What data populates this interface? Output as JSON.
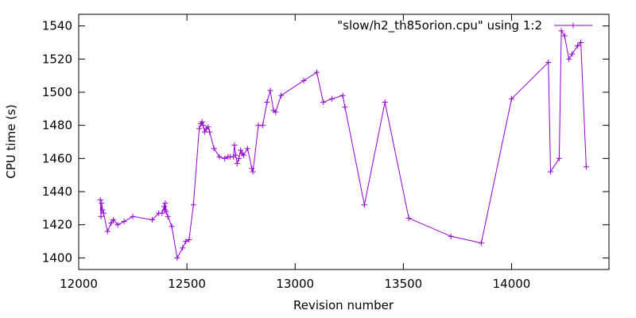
{
  "chart_data": {
    "type": "line",
    "xlabel": "Revision number",
    "ylabel": "CPU time (s)",
    "xlim": [
      12000,
      14450
    ],
    "ylim": [
      1393,
      1547
    ],
    "xticks": [
      12000,
      12500,
      13000,
      13500,
      14000
    ],
    "yticks": [
      1400,
      1420,
      1440,
      1460,
      1480,
      1500,
      1520,
      1540
    ],
    "grid": false,
    "legend_position": "top-right",
    "series": [
      {
        "name": "\"slow/h2_th85orion.cpu\" using 1:2",
        "color": "#9400d3",
        "marker": "plus",
        "points": [
          [
            12100,
            1435
          ],
          [
            12103,
            1425
          ],
          [
            12106,
            1433
          ],
          [
            12110,
            1429
          ],
          [
            12115,
            1427
          ],
          [
            12133,
            1416
          ],
          [
            12150,
            1421
          ],
          [
            12160,
            1423
          ],
          [
            12180,
            1420
          ],
          [
            12210,
            1422
          ],
          [
            12250,
            1425
          ],
          [
            12340,
            1423
          ],
          [
            12370,
            1427
          ],
          [
            12385,
            1427
          ],
          [
            12395,
            1431
          ],
          [
            12398,
            1429
          ],
          [
            12400,
            1433
          ],
          [
            12404,
            1428
          ],
          [
            12412,
            1425
          ],
          [
            12430,
            1419
          ],
          [
            12455,
            1400
          ],
          [
            12480,
            1406
          ],
          [
            12495,
            1410
          ],
          [
            12510,
            1411
          ],
          [
            12530,
            1432
          ],
          [
            12557,
            1478
          ],
          [
            12565,
            1481
          ],
          [
            12570,
            1482
          ],
          [
            12575,
            1480
          ],
          [
            12582,
            1476
          ],
          [
            12590,
            1478
          ],
          [
            12598,
            1479
          ],
          [
            12605,
            1476
          ],
          [
            12625,
            1466
          ],
          [
            12650,
            1461
          ],
          [
            12675,
            1460
          ],
          [
            12690,
            1461
          ],
          [
            12700,
            1461
          ],
          [
            12715,
            1461
          ],
          [
            12720,
            1468
          ],
          [
            12725,
            1462
          ],
          [
            12732,
            1457
          ],
          [
            12740,
            1460
          ],
          [
            12748,
            1465
          ],
          [
            12755,
            1463
          ],
          [
            12762,
            1462
          ],
          [
            12780,
            1466
          ],
          [
            12800,
            1454
          ],
          [
            12805,
            1452
          ],
          [
            12830,
            1480
          ],
          [
            12850,
            1480
          ],
          [
            12870,
            1494
          ],
          [
            12885,
            1501
          ],
          [
            12900,
            1489
          ],
          [
            12910,
            1488
          ],
          [
            12935,
            1498
          ],
          [
            13040,
            1507
          ],
          [
            13100,
            1512
          ],
          [
            13130,
            1494
          ],
          [
            13170,
            1496
          ],
          [
            13220,
            1498
          ],
          [
            13230,
            1491
          ],
          [
            13320,
            1432
          ],
          [
            13415,
            1494
          ],
          [
            13525,
            1424
          ],
          [
            13720,
            1413
          ],
          [
            13860,
            1409
          ],
          [
            14000,
            1496
          ],
          [
            14170,
            1518
          ],
          [
            14180,
            1452
          ],
          [
            14220,
            1460
          ],
          [
            14230,
            1537
          ],
          [
            14245,
            1534
          ],
          [
            14265,
            1520
          ],
          [
            14280,
            1523
          ],
          [
            14305,
            1528
          ],
          [
            14320,
            1530
          ],
          [
            14345,
            1455
          ]
        ]
      }
    ]
  }
}
